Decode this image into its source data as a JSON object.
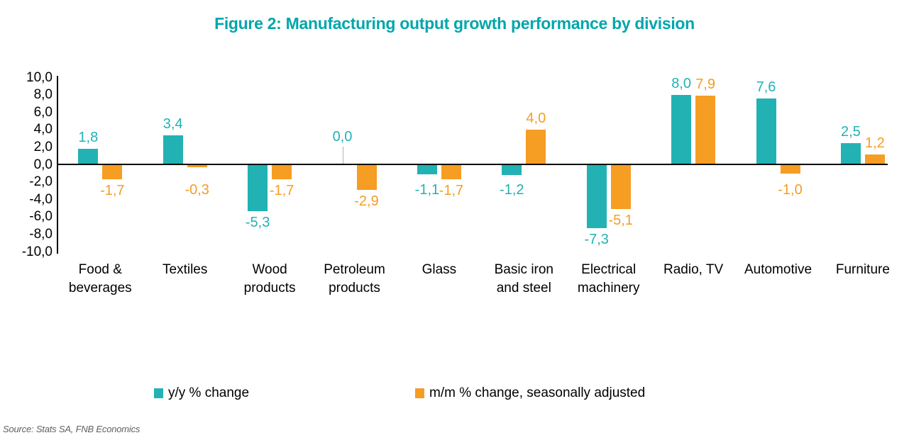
{
  "figure": {
    "title": "Figure 2: Manufacturing output growth performance by division",
    "source": "Source: Stats SA, FNB Economics"
  },
  "legend": [
    {
      "label": "y/y % change",
      "color": "#22B2B4"
    },
    {
      "label": "m/m % change, seasonally adjusted",
      "color": "#F69D23"
    }
  ],
  "chart_data": {
    "type": "bar",
    "title": "Figure 2: Manufacturing output growth performance by division",
    "categories": [
      "Food & beverages",
      "Textiles",
      "Wood products",
      "Petroleum products",
      "Glass",
      "Basic iron and steel",
      "Electrical machinery",
      "Radio, TV",
      "Automotive",
      "Furniture"
    ],
    "series": [
      {
        "name": "y/y % change",
        "color": "#22B2B4",
        "values": [
          1.8,
          3.4,
          -5.3,
          0.0,
          -1.1,
          -1.2,
          -7.3,
          8.0,
          7.6,
          2.5
        ]
      },
      {
        "name": "m/m % change, seasonally adjusted",
        "color": "#F69D23",
        "values": [
          -1.7,
          -0.3,
          -1.7,
          -2.9,
          -1.7,
          4.0,
          -5.1,
          7.9,
          -1.0,
          1.2
        ]
      }
    ],
    "ylim": [
      -10,
      10
    ],
    "ytick_step": 2,
    "ytick_labels": [
      "10,0",
      "8,0",
      "6,0",
      "4,0",
      "2,0",
      "0,0",
      "-2,0",
      "-4,0",
      "-6,0",
      "-8,0",
      "-10,0"
    ],
    "decimal_separator": ",",
    "value_labels": true,
    "grid": false,
    "legend_position": "bottom",
    "axis_color": "#000000",
    "zero_leader_color": "#b3b3b3"
  }
}
